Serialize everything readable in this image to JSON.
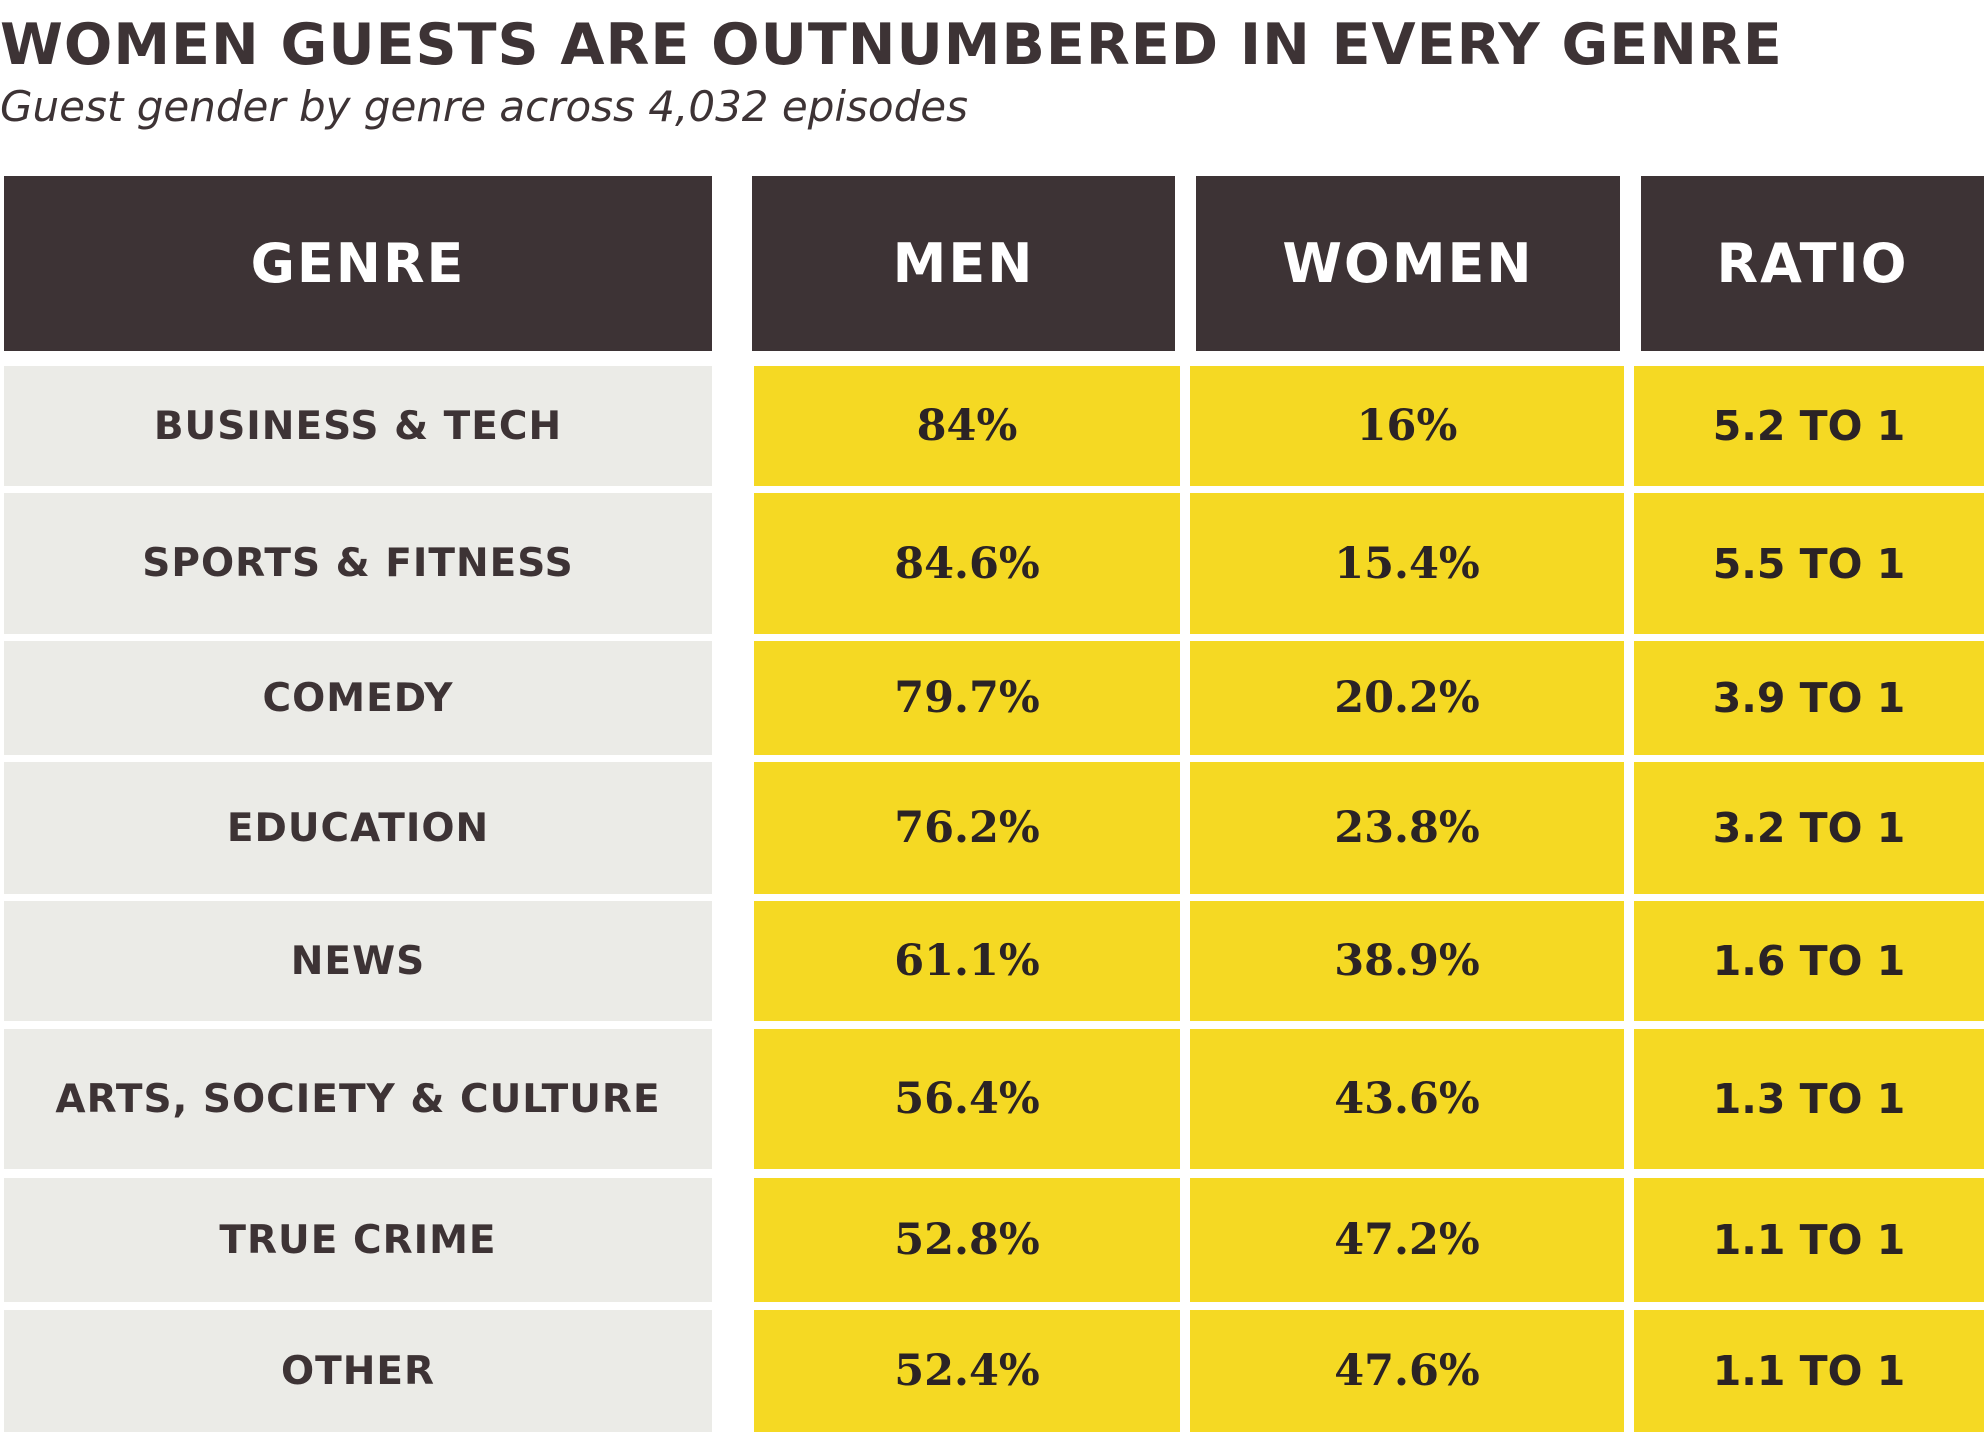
{
  "title": "WOMEN GUESTS ARE OUTNUMBERED IN EVERY GENRE",
  "subtitle": "Guest gender by genre across 4,032 episodes",
  "colors": {
    "header_bg": "#3d3335",
    "genre_bg": "#ebebe7",
    "value_bg": "#f5d923",
    "text_dark": "#3d3335"
  },
  "chart_data": {
    "type": "table",
    "title": "WOMEN GUESTS ARE OUTNUMBERED IN EVERY GENRE",
    "subtitle": "Guest gender by genre across 4,032 episodes",
    "columns": [
      "GENRE",
      "MEN",
      "WOMEN",
      "RATIO"
    ],
    "rows": [
      {
        "genre": "BUSINESS & TECH",
        "men": "84%",
        "women": "16%",
        "ratio": "5.2 TO 1"
      },
      {
        "genre": "SPORTS & FITNESS",
        "men": "84.6%",
        "women": "15.4%",
        "ratio": "5.5 TO 1"
      },
      {
        "genre": "COMEDY",
        "men": "79.7%",
        "women": "20.2%",
        "ratio": "3.9 TO 1"
      },
      {
        "genre": "EDUCATION",
        "men": "76.2%",
        "women": "23.8%",
        "ratio": "3.2 TO 1"
      },
      {
        "genre": "NEWS",
        "men": "61.1%",
        "women": "38.9%",
        "ratio": "1.6 TO 1"
      },
      {
        "genre": "ARTS, SOCIETY & CULTURE",
        "men": "56.4%",
        "women": "43.6%",
        "ratio": "1.3 TO 1"
      },
      {
        "genre": "TRUE CRIME",
        "men": "52.8%",
        "women": "47.2%",
        "ratio": "1.1 TO 1"
      },
      {
        "genre": "OTHER",
        "men": "52.4%",
        "women": "47.6%",
        "ratio": "1.1 TO 1"
      }
    ]
  }
}
